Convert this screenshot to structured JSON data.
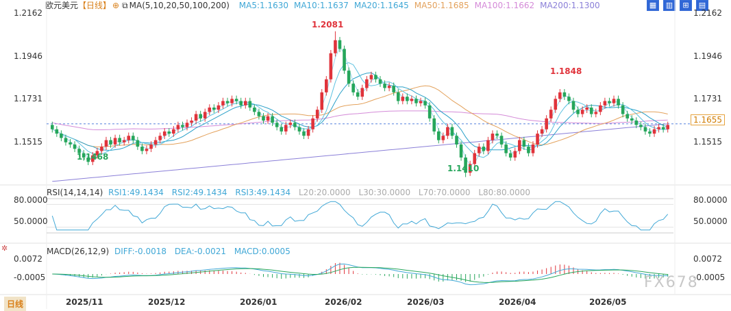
{
  "header": {
    "symbol": "欧元美元",
    "period": "【日线】",
    "ma_title": "MA(5,10,20,50,100,200)",
    "ma": [
      {
        "label": "MA5:1.1630",
        "color": "#3fa7d6"
      },
      {
        "label": "MA10:1.1637",
        "color": "#3fa7d6"
      },
      {
        "label": "MA20:1.1645",
        "color": "#3fa7d6"
      },
      {
        "label": "MA50:1.1685",
        "color": "#e3a15b"
      },
      {
        "label": "MA100:1.1662",
        "color": "#d48ad8"
      },
      {
        "label": "MA200:1.1300",
        "color": "#8a7fd8"
      }
    ]
  },
  "toolbar": {
    "icons": [
      "layout-icon",
      "grid-icon",
      "zoom-icon",
      "settings-icon"
    ],
    "glyphs": [
      "▦",
      "▥",
      "⊞",
      "▤"
    ]
  },
  "price_axis": {
    "ticks": [
      "1.2162",
      "1.1946",
      "1.1731",
      "1.1515"
    ],
    "last_price": "1.1655"
  },
  "annotations": {
    "high": "1.2081",
    "low1": "1.1468",
    "high2": "1.1848",
    "low2": "1.1410"
  },
  "rsi": {
    "title": "RSI(14,14,14)",
    "rsi1": "RSI1:49.1434",
    "rsi2": "RSI2:49.1434",
    "rsi3": "RSI3:49.1434",
    "l20": "L20:20.0000",
    "l30": "L30:30.0000",
    "l70": "L70:70.0000",
    "l80": "L80:80.0000",
    "ticks": [
      "80.0000",
      "50.0000"
    ]
  },
  "macd": {
    "title": "MACD(26,12,9)",
    "diff": "DIFF:-0.0018",
    "dea": "DEA:-0.0021",
    "macd": "MACD:0.0005",
    "ticks": [
      "0.0072",
      "-0.0005"
    ]
  },
  "x_axis": {
    "labels": [
      "2025/11",
      "2025/12",
      "2026/01",
      "2026/02",
      "2026/03",
      "2026/04",
      "2026/05"
    ]
  },
  "period_tab": "日线",
  "watermark": "FX678",
  "colors": {
    "up": "#e0333b",
    "down": "#26a65b",
    "ma5": "#3fa7d6",
    "ma50": "#e3a15b",
    "ma100": "#d48ad8",
    "ma200": "#8a7fd8"
  },
  "chart_data": {
    "type": "candlestick",
    "closes": [
      1.163,
      1.161,
      1.159,
      1.157,
      1.156,
      1.154,
      1.152,
      1.15,
      1.148,
      1.151,
      1.153,
      1.155,
      1.158,
      1.156,
      1.159,
      1.157,
      1.158,
      1.16,
      1.158,
      1.155,
      1.153,
      1.154,
      1.156,
      1.158,
      1.16,
      1.162,
      1.161,
      1.163,
      1.165,
      1.164,
      1.166,
      1.167,
      1.17,
      1.168,
      1.171,
      1.173,
      1.172,
      1.174,
      1.176,
      1.175,
      1.177,
      1.176,
      1.174,
      1.176,
      1.173,
      1.171,
      1.169,
      1.167,
      1.169,
      1.166,
      1.164,
      1.162,
      1.165,
      1.166,
      1.164,
      1.162,
      1.16,
      1.163,
      1.168,
      1.172,
      1.18,
      1.186,
      1.198,
      1.204,
      1.2,
      1.19,
      1.184,
      1.18,
      1.178,
      1.182,
      1.186,
      1.188,
      1.186,
      1.184,
      1.182,
      1.183,
      1.18,
      1.176,
      1.178,
      1.176,
      1.177,
      1.175,
      1.176,
      1.174,
      1.168,
      1.162,
      1.158,
      1.16,
      1.164,
      1.16,
      1.156,
      1.15,
      1.143,
      1.147,
      1.152,
      1.155,
      1.153,
      1.158,
      1.161,
      1.16,
      1.156,
      1.152,
      1.15,
      1.153,
      1.158,
      1.155,
      1.152,
      1.156,
      1.161,
      1.163,
      1.168,
      1.172,
      1.177,
      1.18,
      1.178,
      1.176,
      1.172,
      1.17,
      1.172,
      1.173,
      1.17,
      1.171,
      1.174,
      1.176,
      1.175,
      1.177,
      1.174,
      1.17,
      1.168,
      1.167,
      1.165,
      1.164,
      1.162,
      1.161,
      1.163,
      1.164,
      1.163,
      1.165
    ],
    "high": 1.2081,
    "low": 1.141,
    "ylim": [
      1.138,
      1.2162
    ]
  }
}
